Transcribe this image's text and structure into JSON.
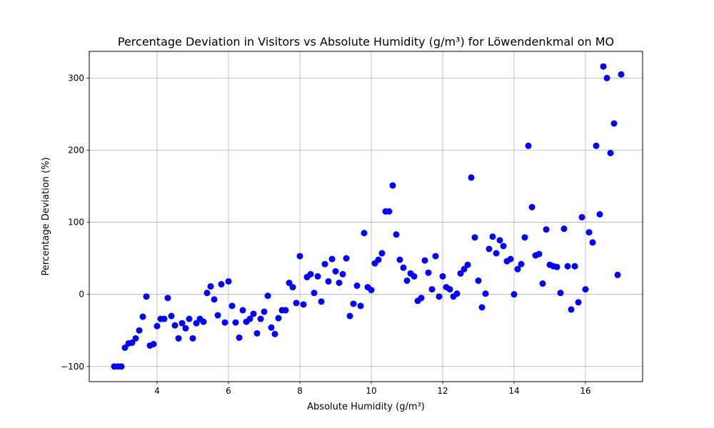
{
  "chart_data": {
    "type": "scatter",
    "title": "Percentage Deviation in Visitors vs Absolute Humidity (g/m³) for Löwendenkmal on MO",
    "xlabel": "Absolute Humidity (g/m³)",
    "ylabel": "Percentage Deviation (%)",
    "xlim": [
      2.1,
      17.6
    ],
    "ylim": [
      -121,
      337
    ],
    "xticks": [
      4,
      6,
      8,
      10,
      12,
      14,
      16
    ],
    "yticks": [
      -100,
      0,
      100,
      200,
      300
    ],
    "grid": true,
    "marker_color": "#0000ff",
    "series": [
      {
        "points": [
          [
            2.8,
            -100
          ],
          [
            2.9,
            -100
          ],
          [
            3.0,
            -100
          ],
          [
            3.1,
            -74
          ],
          [
            3.2,
            -68
          ],
          [
            3.3,
            -67
          ],
          [
            3.4,
            -61
          ],
          [
            3.5,
            -50
          ],
          [
            3.6,
            -31
          ],
          [
            3.7,
            -3
          ],
          [
            3.8,
            -71
          ],
          [
            3.9,
            -69
          ],
          [
            4.0,
            -44
          ],
          [
            4.1,
            -34
          ],
          [
            4.2,
            -34
          ],
          [
            4.3,
            -5
          ],
          [
            4.4,
            -30
          ],
          [
            4.5,
            -43
          ],
          [
            4.6,
            -61
          ],
          [
            4.7,
            -40
          ],
          [
            4.8,
            -47
          ],
          [
            4.9,
            -34
          ],
          [
            5.0,
            -61
          ],
          [
            5.1,
            -40
          ],
          [
            5.2,
            -34
          ],
          [
            5.3,
            -38
          ],
          [
            5.4,
            2
          ],
          [
            5.5,
            11
          ],
          [
            5.6,
            -7
          ],
          [
            5.7,
            -29
          ],
          [
            5.8,
            14
          ],
          [
            5.9,
            -39
          ],
          [
            6.0,
            18
          ],
          [
            6.1,
            -16
          ],
          [
            6.2,
            -39
          ],
          [
            6.3,
            -60
          ],
          [
            6.4,
            -22
          ],
          [
            6.5,
            -38
          ],
          [
            6.6,
            -34
          ],
          [
            6.7,
            -27
          ],
          [
            6.8,
            -54
          ],
          [
            6.9,
            -34
          ],
          [
            7.0,
            -24
          ],
          [
            7.1,
            -2
          ],
          [
            7.2,
            -46
          ],
          [
            7.3,
            -55
          ],
          [
            7.4,
            -33
          ],
          [
            7.5,
            -22
          ],
          [
            7.6,
            -22
          ],
          [
            7.7,
            16
          ],
          [
            7.8,
            10
          ],
          [
            7.9,
            -12
          ],
          [
            8.0,
            53
          ],
          [
            8.1,
            -14
          ],
          [
            8.2,
            24
          ],
          [
            8.3,
            28
          ],
          [
            8.4,
            2
          ],
          [
            8.5,
            25
          ],
          [
            8.6,
            -10
          ],
          [
            8.7,
            42
          ],
          [
            8.8,
            18
          ],
          [
            8.9,
            49
          ],
          [
            9.0,
            32
          ],
          [
            9.1,
            16
          ],
          [
            9.2,
            28
          ],
          [
            9.3,
            50
          ],
          [
            9.4,
            -30
          ],
          [
            9.5,
            -13
          ],
          [
            9.6,
            12
          ],
          [
            9.7,
            -16
          ],
          [
            9.8,
            85
          ],
          [
            9.9,
            10
          ],
          [
            10.0,
            6
          ],
          [
            10.1,
            43
          ],
          [
            10.2,
            48
          ],
          [
            10.3,
            57
          ],
          [
            10.4,
            115
          ],
          [
            10.5,
            115
          ],
          [
            10.6,
            151
          ],
          [
            10.7,
            83
          ],
          [
            10.8,
            48
          ],
          [
            10.9,
            37
          ],
          [
            11.0,
            19
          ],
          [
            11.1,
            29
          ],
          [
            11.2,
            25
          ],
          [
            11.3,
            -9
          ],
          [
            11.4,
            -5
          ],
          [
            11.5,
            47
          ],
          [
            11.6,
            30
          ],
          [
            11.7,
            7
          ],
          [
            11.8,
            53
          ],
          [
            11.9,
            -3
          ],
          [
            12.0,
            25
          ],
          [
            12.1,
            10
          ],
          [
            12.2,
            7
          ],
          [
            12.3,
            -3
          ],
          [
            12.4,
            1
          ],
          [
            12.5,
            29
          ],
          [
            12.6,
            35
          ],
          [
            12.7,
            41
          ],
          [
            12.8,
            162
          ],
          [
            12.9,
            79
          ],
          [
            13.0,
            19
          ],
          [
            13.1,
            -18
          ],
          [
            13.2,
            1
          ],
          [
            13.3,
            63
          ],
          [
            13.4,
            80
          ],
          [
            13.5,
            57
          ],
          [
            13.6,
            75
          ],
          [
            13.7,
            67
          ],
          [
            13.8,
            46
          ],
          [
            13.9,
            49
          ],
          [
            14.0,
            0
          ],
          [
            14.1,
            35
          ],
          [
            14.2,
            42
          ],
          [
            14.3,
            79
          ],
          [
            14.4,
            206
          ],
          [
            14.5,
            121
          ],
          [
            14.6,
            54
          ],
          [
            14.7,
            56
          ],
          [
            14.8,
            15
          ],
          [
            14.9,
            90
          ],
          [
            15.0,
            41
          ],
          [
            15.1,
            39
          ],
          [
            15.2,
            38
          ],
          [
            15.3,
            2
          ],
          [
            15.4,
            91
          ],
          [
            15.5,
            39
          ],
          [
            15.6,
            -21
          ],
          [
            15.7,
            39
          ],
          [
            15.8,
            -11
          ],
          [
            15.9,
            107
          ],
          [
            16.0,
            7
          ],
          [
            16.1,
            86
          ],
          [
            16.2,
            72
          ],
          [
            16.3,
            206
          ],
          [
            16.4,
            111
          ],
          [
            16.5,
            316
          ],
          [
            16.6,
            300
          ],
          [
            16.7,
            196
          ],
          [
            16.8,
            237
          ],
          [
            16.9,
            27
          ],
          [
            17.0,
            305
          ]
        ]
      }
    ]
  }
}
